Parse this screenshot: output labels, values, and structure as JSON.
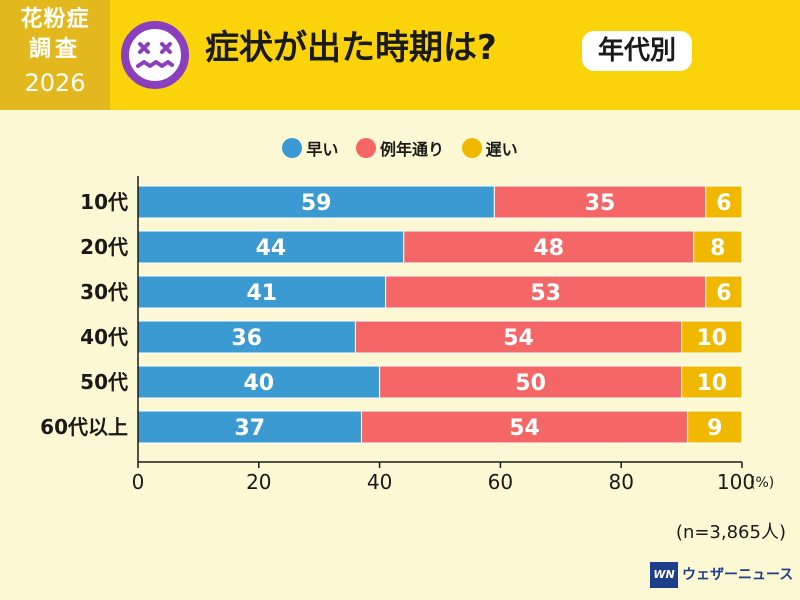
{
  "header": {
    "badge_line1": "花粉症",
    "badge_line2": "調査",
    "badge_line3": "2026",
    "title": "症状が出た時期は?",
    "tag": "年代別"
  },
  "footnote": "(n=3,865人)",
  "brand": {
    "mark": "WN",
    "name": "ウェザーニュース"
  },
  "colors": {
    "header": "#fbd30a",
    "badge": "#e3b81f",
    "background": "#fdf8d4",
    "early": "#3a9ad1",
    "normal": "#f56666",
    "late": "#f0b800",
    "face": "#8a3fbf"
  },
  "chart_data": {
    "type": "bar",
    "orientation": "horizontal",
    "stacked": true,
    "categories": [
      "10代",
      "20代",
      "30代",
      "40代",
      "50代",
      "60代以上"
    ],
    "series": [
      {
        "name": "早い",
        "values": [
          59,
          44,
          41,
          36,
          40,
          37
        ],
        "color": "#3a9ad1"
      },
      {
        "name": "例年通り",
        "values": [
          35,
          48,
          53,
          54,
          50,
          54
        ],
        "color": "#f56666"
      },
      {
        "name": "遅い",
        "values": [
          6,
          8,
          6,
          10,
          10,
          9
        ],
        "color": "#f0b800"
      }
    ],
    "xlim": [
      0,
      100
    ],
    "xticks": [
      "0",
      "20",
      "40",
      "60",
      "80",
      "100"
    ],
    "xunit": "(%)",
    "legend": "top",
    "grid": false
  }
}
